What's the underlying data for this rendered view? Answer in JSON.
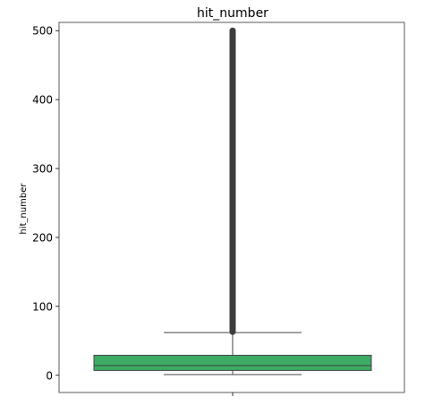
{
  "chart_data": {
    "type": "boxplot",
    "title": "hit_number",
    "xlabel": "",
    "ylabel": "hit_number",
    "ylim": [
      -25,
      512
    ],
    "yticks": [
      0,
      100,
      200,
      300,
      400,
      500
    ],
    "ytick_labels": [
      "0",
      "100",
      "200",
      "300",
      "400",
      "500"
    ],
    "grid": false,
    "legend": "none",
    "colors": {
      "box": "#3cab63",
      "lines": "#454545",
      "axes": "#333333"
    },
    "series": [
      {
        "whisker_low": 1,
        "q1": 7,
        "median": 14,
        "q3": 29,
        "whisker_high": 62,
        "outliers_min": 63,
        "outliers_max": 500
      }
    ]
  }
}
